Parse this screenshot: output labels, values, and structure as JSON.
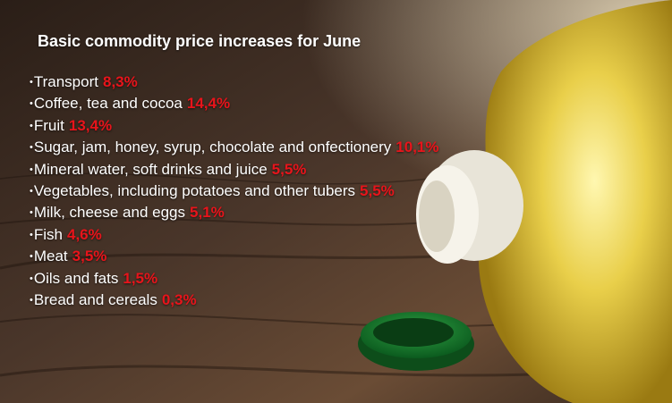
{
  "header": {
    "title": "Basic commodity price increases for June"
  },
  "items": [
    {
      "label": "Transport",
      "value": "8,3%"
    },
    {
      "label": "Coffee, tea and cocoa",
      "value": "14,4%"
    },
    {
      "label": "Fruit",
      "value": "13,4%"
    },
    {
      "label": "Sugar, jam, honey, syrup, chocolate  and onfectionery",
      "value": "10,1%"
    },
    {
      "label": "Mineral water, soft drinks and juice",
      "value": "5,5%"
    },
    {
      "label": "Vegetables, including potatoes and other tubers",
      "value": "5,5%"
    },
    {
      "label": "Milk, cheese and eggs",
      "value": "5,1%"
    },
    {
      "label": "Fish",
      "value": "4,6%"
    },
    {
      "label": "Meat",
      "value": "3,5%"
    },
    {
      "label": "Oils and fats",
      "value": "1,5%"
    },
    {
      "label": "Bread and cereals",
      "value": "0,3%"
    }
  ]
}
